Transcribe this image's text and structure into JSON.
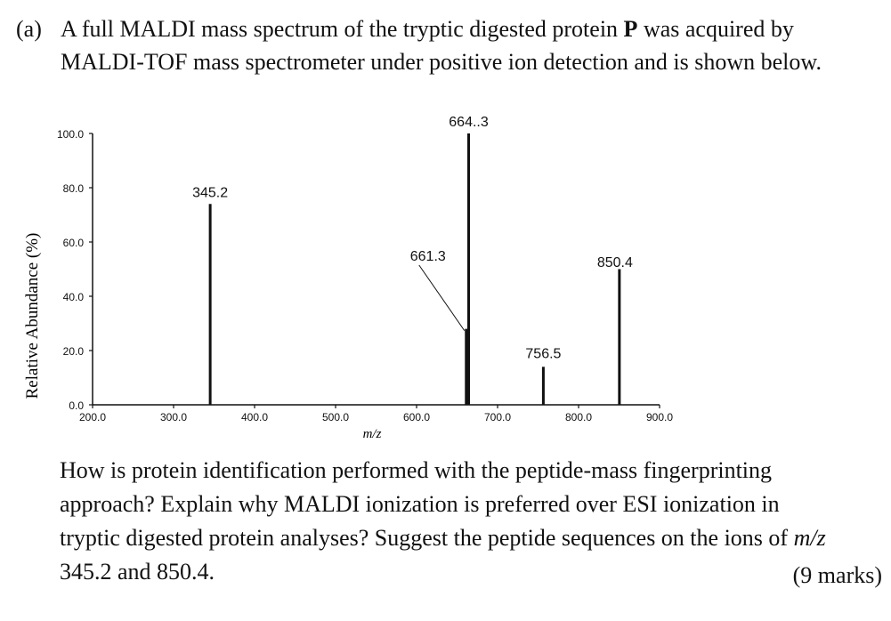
{
  "intro": {
    "label": "(a)",
    "line1_pre": "A full MALDI mass spectrum of the tryptic digested protein ",
    "line1_bold": "P",
    "line1_post": " was acquired by",
    "line2": "MALDI-TOF mass spectrometer under positive ion detection and is shown below."
  },
  "chart_data": {
    "type": "bar",
    "subtype": "mass-spectrum",
    "xlabel": "m/z",
    "ylabel": "Relative Abundance (%)",
    "xlim": [
      200,
      900
    ],
    "ylim": [
      0,
      100
    ],
    "x_ticks": [
      "200.0",
      "300.0",
      "400.0",
      "500.0",
      "600.0",
      "700.0",
      "800.0",
      "900.0"
    ],
    "y_ticks": [
      "0.0",
      "20.0",
      "40.0",
      "60.0",
      "80.0",
      "100.0"
    ],
    "peaks": [
      {
        "mz": 345.2,
        "abundance": 74,
        "label": "345.2"
      },
      {
        "mz": 661.3,
        "abundance": 28,
        "label": "661.3"
      },
      {
        "mz": 664.3,
        "abundance": 100,
        "label": "664..3"
      },
      {
        "mz": 756.5,
        "abundance": 14,
        "label": "756.5"
      },
      {
        "mz": 850.4,
        "abundance": 50,
        "label": "850.4"
      }
    ],
    "grid": false
  },
  "question": {
    "line1": "How is protein identification performed with the peptide-mass fingerprinting",
    "line2": "approach? Explain why MALDI ionization is preferred over ESI ionization in",
    "line3_pre": "tryptic digested protein analyses? Suggest the peptide sequences on the ions of ",
    "line3_em": "m/z",
    "line4": "345.2 and 850.4."
  },
  "marks": "(9 marks)"
}
